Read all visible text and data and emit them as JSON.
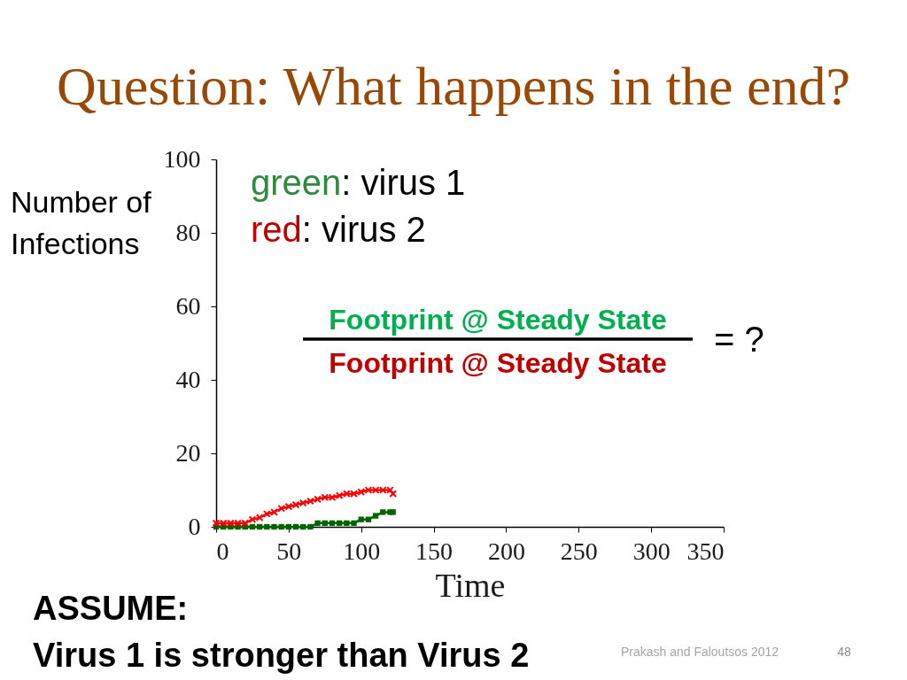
{
  "chart_data": {
    "type": "line",
    "title": "Question: What happens in the end?",
    "xlabel": "Time",
    "ylabel": "Number of Infections",
    "x": [
      0,
      5,
      10,
      15,
      20,
      25,
      30,
      35,
      40,
      45,
      50,
      55,
      60,
      65,
      70,
      75,
      80,
      85,
      90,
      95,
      100,
      105,
      110,
      115,
      120,
      122
    ],
    "series": [
      {
        "color": "#006400",
        "marker": "square",
        "values": [
          0,
          0,
          0,
          0,
          0,
          0,
          0,
          0,
          0,
          0,
          0,
          0,
          0,
          0,
          1,
          1,
          1,
          1,
          1,
          1,
          2,
          2,
          3,
          4,
          4,
          4
        ]
      },
      {
        "color": "#ff0000",
        "marker": "cross",
        "values": [
          1,
          1,
          1,
          1,
          1,
          2,
          2.5,
          3.5,
          4,
          5,
          5.5,
          6,
          6.5,
          7,
          7.5,
          8,
          8,
          8.5,
          9,
          9,
          9.5,
          10,
          10,
          10,
          10,
          9
        ]
      }
    ],
    "xlim": [
      0,
      350
    ],
    "xticks": [
      0,
      50,
      100,
      150,
      200,
      250,
      300,
      350
    ],
    "ylim": [
      0,
      100
    ],
    "yticks": [
      0,
      20,
      40,
      60,
      80,
      100
    ],
    "annotations": [
      "green: virus 1",
      "red: virus 2",
      "Footprint @ Steady State",
      "Footprint @ Steady State",
      "= ?",
      "ASSUME:",
      "Virus 1 is stronger than Virus 2",
      "Prakash and Faloutsos 2012",
      "48"
    ]
  }
}
